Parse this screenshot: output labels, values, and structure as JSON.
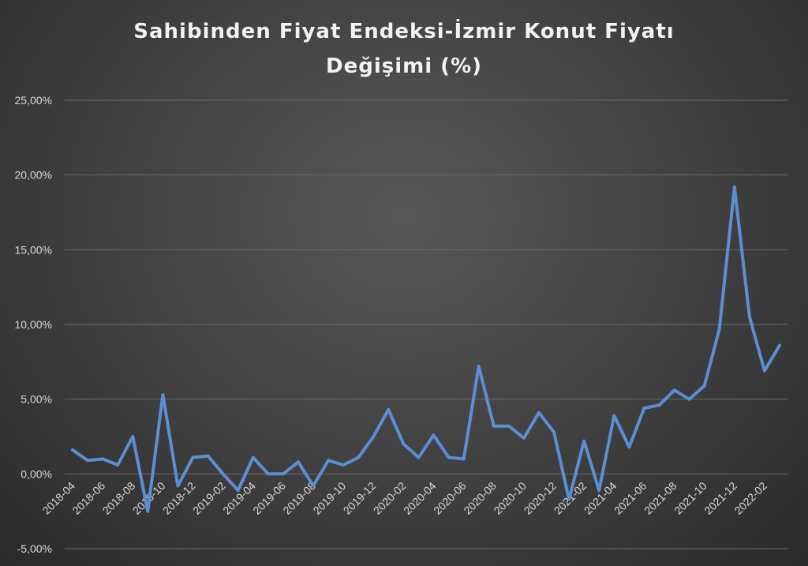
{
  "chart_data": {
    "type": "line",
    "title_lines": [
      "Sahibinden Fiyat Endeksi-İzmir Konut Fiyatı",
      "Değişimi (%)"
    ],
    "xlabel": "",
    "ylabel": "",
    "ylim": [
      -5,
      25
    ],
    "y_ticks": [
      "-5,00%",
      "0,00%",
      "5,00%",
      "10,00%",
      "15,00%",
      "20,00%",
      "25,00%"
    ],
    "y_tick_values": [
      -5,
      0,
      5,
      10,
      15,
      20,
      25
    ],
    "grid": true,
    "legend": "none",
    "x_tick_labels": [
      "2018-04",
      "2018-06",
      "2018-08",
      "2018-10",
      "2018-12",
      "2019-02",
      "2019-04",
      "2019-06",
      "2019-08",
      "2019-10",
      "2019-12",
      "2020-02",
      "2020-04",
      "2020-06",
      "2020-08",
      "2020-10",
      "2020-12",
      "2021-02",
      "2021-04",
      "2021-06",
      "2021-08",
      "2021-10",
      "2021-12",
      "2022-02"
    ],
    "series_color": "#5b8fd4",
    "x": [
      "2018-04",
      "2018-05",
      "2018-06",
      "2018-07",
      "2018-08",
      "2018-09",
      "2018-10",
      "2018-11",
      "2018-12",
      "2019-01",
      "2019-02",
      "2019-03",
      "2019-04",
      "2019-05",
      "2019-06",
      "2019-07",
      "2019-08",
      "2019-09",
      "2019-10",
      "2019-11",
      "2019-12",
      "2020-01",
      "2020-02",
      "2020-03",
      "2020-04",
      "2020-05",
      "2020-06",
      "2020-07",
      "2020-08",
      "2020-09",
      "2020-10",
      "2020-11",
      "2020-12",
      "2021-01",
      "2021-02",
      "2021-03",
      "2021-04",
      "2021-05",
      "2021-06",
      "2021-07",
      "2021-08",
      "2021-09",
      "2021-10",
      "2021-11",
      "2021-12",
      "2022-01",
      "2022-02",
      "2022-03"
    ],
    "values": [
      1.6,
      0.9,
      1.0,
      0.6,
      2.5,
      -2.5,
      5.3,
      -0.8,
      1.1,
      1.2,
      0.0,
      -1.1,
      1.1,
      0.0,
      0.0,
      0.8,
      -0.8,
      0.9,
      0.6,
      1.1,
      2.5,
      4.3,
      2.0,
      1.1,
      2.6,
      1.1,
      1.0,
      7.2,
      3.2,
      3.2,
      2.4,
      4.1,
      2.8,
      -1.7,
      2.2,
      -1.1,
      3.9,
      1.8,
      4.4,
      4.6,
      5.6,
      5.0,
      5.9,
      9.7,
      19.2,
      10.5,
      6.9,
      8.6
    ]
  }
}
